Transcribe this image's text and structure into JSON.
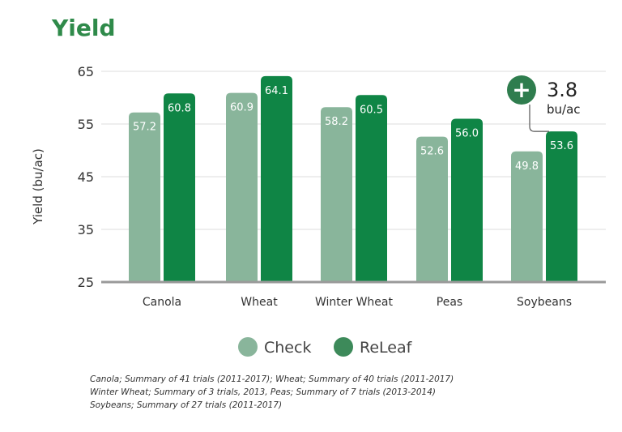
{
  "chart_data": {
    "type": "bar",
    "title": "Yield",
    "ylabel": "Yield (bu/ac)",
    "xlabel": "",
    "ylim": [
      25,
      65
    ],
    "yticks": [
      25,
      35,
      45,
      55,
      65
    ],
    "grid": true,
    "legend_position": "bottom",
    "categories": [
      "Canola",
      "Wheat",
      "Winter Wheat",
      "Peas",
      "Soybeans"
    ],
    "series": [
      {
        "name": "Check",
        "color": "#89b59b",
        "values": [
          57.2,
          60.9,
          58.2,
          52.6,
          49.8
        ],
        "labels": [
          "57.2",
          "60.9",
          "58.2",
          "52.6",
          "49.8"
        ]
      },
      {
        "name": "ReLeaf",
        "color": "#0f8545",
        "values": [
          60.8,
          64.1,
          60.5,
          56.0,
          53.6
        ],
        "labels": [
          "60.8",
          "64.1",
          "60.5",
          "56.0",
          "53.6"
        ]
      }
    ],
    "annotation": {
      "symbol": "+",
      "value": "3.8",
      "unit": "bu/ac",
      "category": "Soybeans",
      "color": "#2f7d4e"
    },
    "title_color": "#2f8a4a",
    "legend_check_color": "#89b59b",
    "legend_releaf_color": "#3d8a5a"
  },
  "footnotes": [
    "Canola; Summary of 41 trials (2011-2017); Wheat; Summary of 40 trials (2011-2017)",
    "Winter Wheat; Summary of 3 trials, 2013, Peas; Summary of 7 trials (2013-2014)",
    "Soybeans; Summary of 27 trials (2011-2017)"
  ]
}
